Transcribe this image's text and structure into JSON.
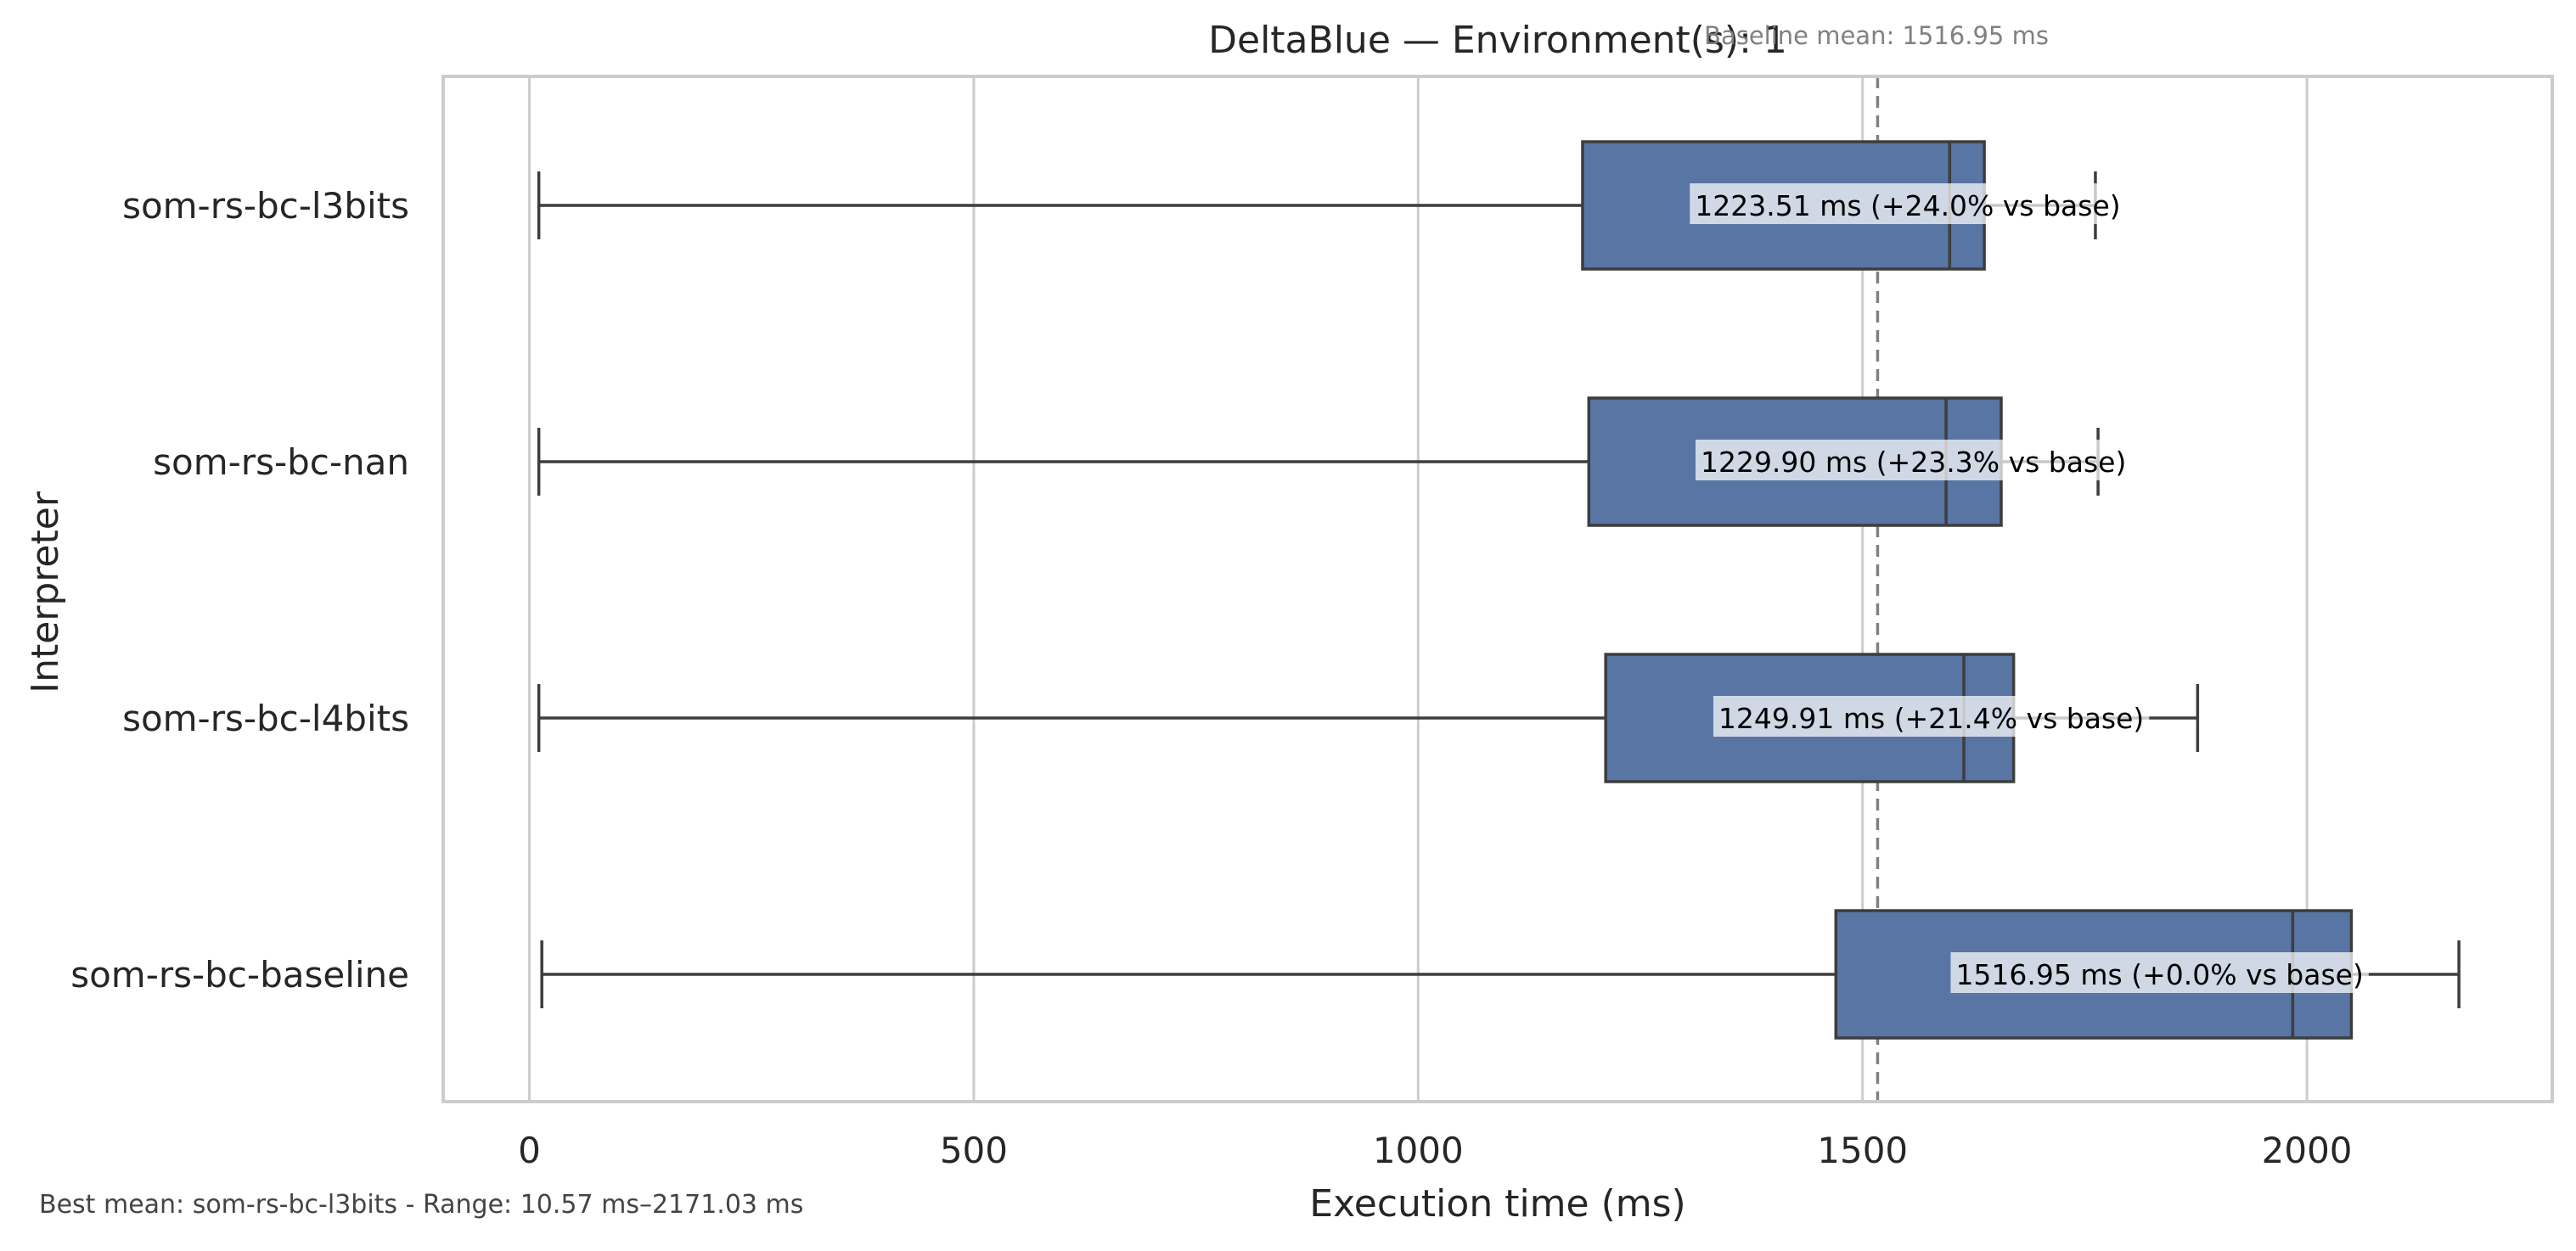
{
  "chart_data": {
    "type": "boxplot",
    "orientation": "horizontal",
    "title": "DeltaBlue — Environment(s): 1",
    "xlabel": "Execution time (ms)",
    "ylabel": "Interpreter",
    "xlim": [
      -97,
      2276
    ],
    "xticks": [
      0,
      500,
      1000,
      1500,
      2000
    ],
    "xtick_labels": [
      "0",
      "500",
      "1000",
      "1500",
      "2000"
    ],
    "grid": "vertical",
    "box_color": "#5875a4",
    "categories": [
      "som-rs-bc-l3bits",
      "som-rs-bc-nan",
      "som-rs-bc-l4bits",
      "som-rs-bc-baseline"
    ],
    "boxes": [
      {
        "name": "som-rs-bc-l3bits",
        "whisker_low": 10.6,
        "q1": 1185,
        "median": 1598,
        "q3": 1637,
        "whisker_high": 1762,
        "mean": 1223.51,
        "annotation": "1223.51 ms  (+24.0% vs base)"
      },
      {
        "name": "som-rs-bc-nan",
        "whisker_low": 10.6,
        "q1": 1192,
        "median": 1594,
        "q3": 1656,
        "whisker_high": 1765,
        "mean": 1229.9,
        "annotation": "1229.90 ms  (+23.3% vs base)"
      },
      {
        "name": "som-rs-bc-l4bits",
        "whisker_low": 10.6,
        "q1": 1211,
        "median": 1614,
        "q3": 1670,
        "whisker_high": 1877,
        "mean": 1249.91,
        "annotation": "1249.91 ms  (+21.4% vs base)"
      },
      {
        "name": "som-rs-bc-baseline",
        "whisker_low": 14,
        "q1": 1470,
        "median": 1984,
        "q3": 2050,
        "whisker_high": 2171.03,
        "mean": 1516.95,
        "annotation": "1516.95 ms  (+0.0% vs base)"
      }
    ],
    "baseline": {
      "value": 1516.95,
      "label": "Baseline mean: 1516.95 ms",
      "style": "dashed",
      "color": "#808080"
    }
  },
  "footer": "Best mean: som-rs-bc-l3bits - Range: 10.57 ms–2171.03 ms"
}
